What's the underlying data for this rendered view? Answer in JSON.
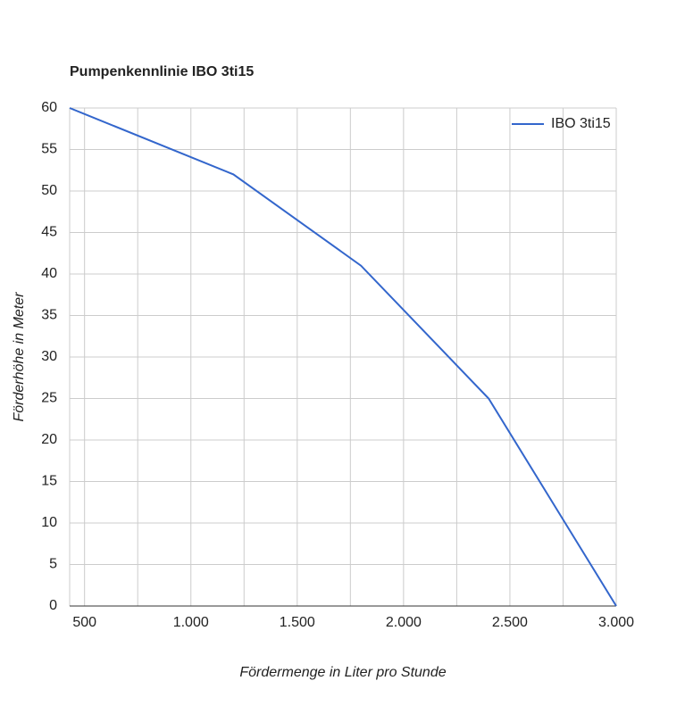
{
  "chart_data": {
    "type": "line",
    "title": "Pumpenkennlinie IBO 3ti15",
    "x_label": "Fördermenge in Liter pro Stunde",
    "y_label": "Förderhöhe in Meter",
    "x": [
      430,
      1200,
      1800,
      2400,
      3000
    ],
    "series": [
      {
        "name": "IBO 3ti15",
        "color": "#3366cc",
        "values": [
          60,
          52,
          41,
          25,
          0
        ]
      }
    ],
    "xlim": [
      430,
      3000
    ],
    "xticks": [
      500,
      {
        "value": 1000,
        "label": "1.000"
      },
      {
        "value": 1500,
        "label": "1.500"
      },
      {
        "value": 2000,
        "label": "2.000"
      },
      {
        "value": 2500,
        "label": "2.500"
      },
      {
        "value": 3000,
        "label": "3.000"
      }
    ],
    "xminor": [
      750,
      1250,
      1750,
      2250,
      2750
    ],
    "ylim": [
      0,
      60
    ],
    "yticks": [
      0,
      5,
      10,
      15,
      20,
      25,
      30,
      35,
      40,
      45,
      50,
      55,
      60
    ],
    "grid": true,
    "legend": "top-right"
  }
}
